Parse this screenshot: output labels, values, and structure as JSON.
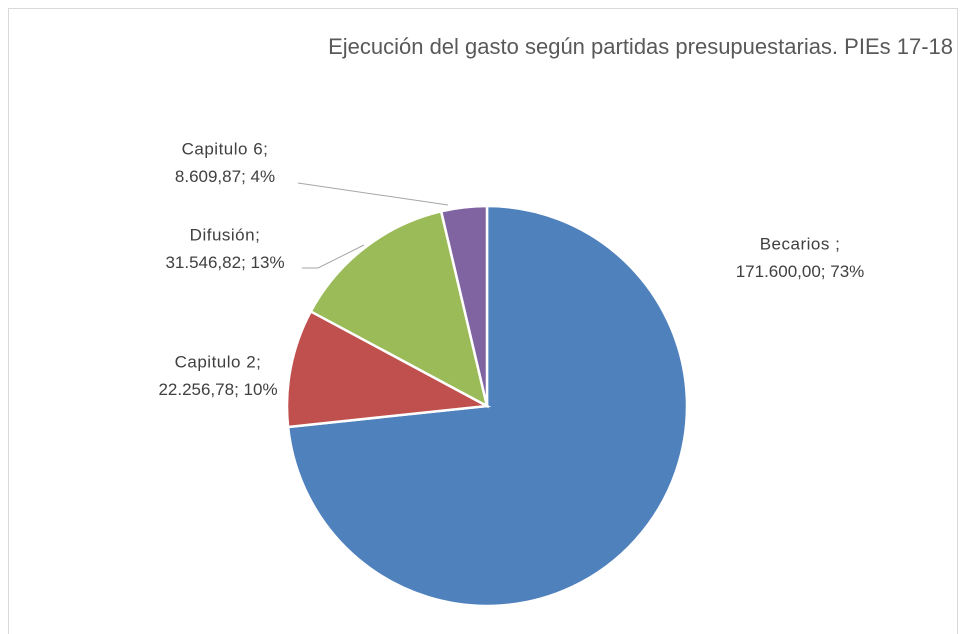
{
  "chart_data": {
    "type": "pie",
    "title": "Ejecución del gasto según partidas presupuestarias. PIEs 17-18",
    "categories": [
      "Becarios ;",
      "Capitulo 2;",
      "Difusión;",
      "Capitulo 6;"
    ],
    "values": [
      171600.0,
      22256.78,
      31546.82,
      8609.87
    ],
    "value_labels": [
      "171.600,00",
      "22.256,78",
      "31.546,82",
      "8.609,87"
    ],
    "percentages": [
      73,
      10,
      13,
      4
    ],
    "percentage_labels": [
      "73%",
      "10%",
      "13%",
      "4%"
    ],
    "label_separator": "; ",
    "colors": [
      "#4f81bd",
      "#c0504d",
      "#9bbb59",
      "#8064a2"
    ]
  }
}
